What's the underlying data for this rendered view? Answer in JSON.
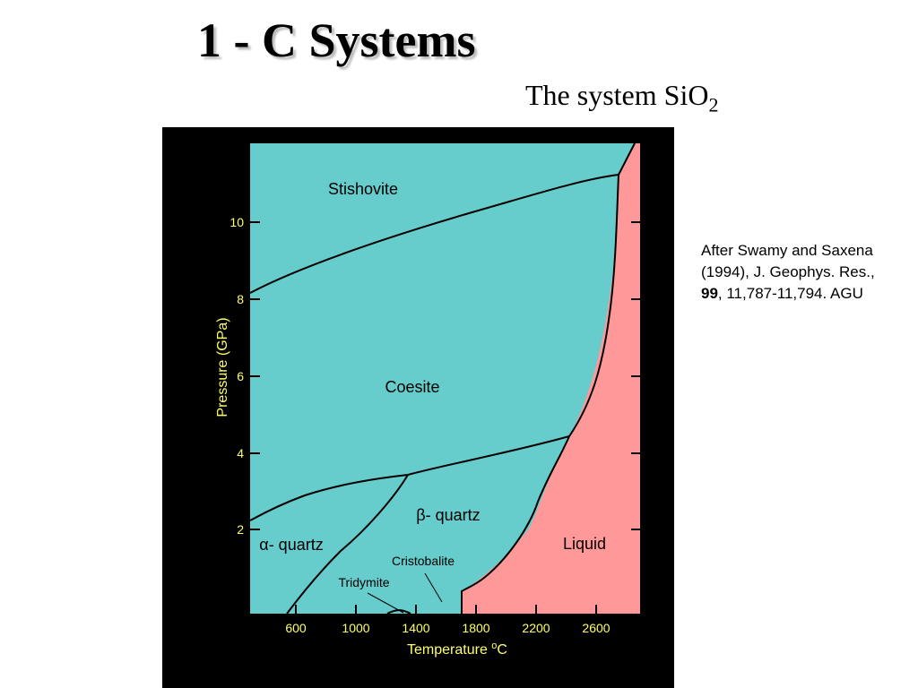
{
  "slide": {
    "title": "1 - C Systems",
    "subtitle": {
      "text": "The system SiO",
      "subscript": "2"
    },
    "figure": {
      "y_axis_label": "Pressure (GPa)",
      "x_axis_label": {
        "text": "Temperature ",
        "superscript": "o",
        "unit": "C"
      },
      "yticks": [
        "10",
        "8",
        "6",
        "4",
        "2"
      ],
      "xticks": [
        "600",
        "1000",
        "1400",
        "1800",
        "2200",
        "2600"
      ],
      "regions": [
        "Stishovite",
        "Coesite",
        "β- quartz",
        "α- quartz",
        "Cristobalite",
        "Tridymite",
        "Liquid"
      ]
    },
    "citation": {
      "before": "After Swamy and Saxena (1994), J. Geophys. Res., ",
      "volume": "99",
      "after": ", 11,787-11,794. AGU"
    }
  }
}
